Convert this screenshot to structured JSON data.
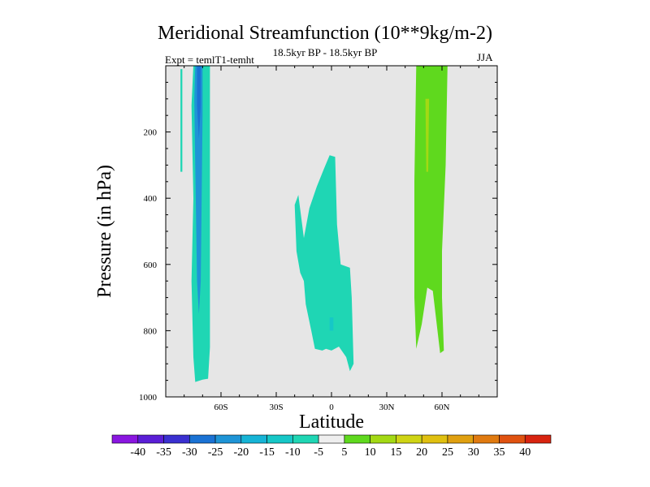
{
  "chart_data": {
    "type": "filled-contour",
    "title": "Meridional Streamfunction (10**9kg/m-2)",
    "subtitle": "18.5kyr BP - 18.5kyr BP",
    "experiment": "Expt = temlT1-temht",
    "season": "JJA",
    "xlabel": "Latitude",
    "ylabel": "Pressure (in hPa)",
    "xlim": [
      -90,
      90
    ],
    "ylim": [
      1000,
      0
    ],
    "xticks": [
      {
        "value": -60,
        "label": "60S"
      },
      {
        "value": -30,
        "label": "30S"
      },
      {
        "value": 0,
        "label": "0"
      },
      {
        "value": 30,
        "label": "30N"
      },
      {
        "value": 60,
        "label": "60N"
      }
    ],
    "yticks": [
      {
        "value": 200,
        "label": "200"
      },
      {
        "value": 400,
        "label": "400"
      },
      {
        "value": 600,
        "label": "600"
      },
      {
        "value": 800,
        "label": "800"
      },
      {
        "value": 1000,
        "label": "1000"
      }
    ],
    "background_color": "#e6e6e6",
    "contour_regions": [
      {
        "name": "sh-high-lat-cell",
        "level": -10,
        "color": "#1fd6b4",
        "polygon": [
          [
            -74,
            0
          ],
          [
            -66,
            0
          ],
          [
            -66,
            850
          ],
          [
            -67,
            945
          ],
          [
            -70,
            948
          ],
          [
            -74,
            955
          ],
          [
            -75,
            880
          ],
          [
            -76,
            650
          ],
          [
            -75,
            400
          ],
          [
            -76,
            120
          ],
          [
            -75,
            0
          ]
        ]
      },
      {
        "name": "sh-strip",
        "level": -10,
        "color": "#1fd6b4",
        "polygon": [
          [
            -82,
            10
          ],
          [
            -81,
            10
          ],
          [
            -81,
            320
          ],
          [
            -82,
            320
          ]
        ]
      },
      {
        "name": "sh-core",
        "level": -20,
        "color": "#1e94d6",
        "polygon": [
          [
            -74,
            0
          ],
          [
            -70,
            0
          ],
          [
            -70,
            150
          ],
          [
            -71,
            650
          ],
          [
            -72,
            750
          ],
          [
            -73,
            650
          ],
          [
            -74,
            300
          ],
          [
            -74.5,
            100
          ]
        ]
      },
      {
        "name": "sh-core-inner",
        "level": -25,
        "color": "#1a72d4",
        "polygon": [
          [
            -73,
            0
          ],
          [
            -71,
            0
          ],
          [
            -71,
            120
          ],
          [
            -72,
            220
          ],
          [
            -73,
            120
          ]
        ]
      },
      {
        "name": "equatorial-cell",
        "level": -10,
        "color": "#1fd6b4",
        "polygon": [
          [
            -1,
            270
          ],
          [
            2,
            275
          ],
          [
            3,
            480
          ],
          [
            5,
            600
          ],
          [
            10,
            610
          ],
          [
            11,
            700
          ],
          [
            12,
            900
          ],
          [
            10,
            922
          ],
          [
            8,
            880
          ],
          [
            4,
            848
          ],
          [
            0,
            860
          ],
          [
            -3,
            855
          ],
          [
            -5,
            860
          ],
          [
            -9,
            855
          ],
          [
            -11,
            800
          ],
          [
            -14,
            720
          ],
          [
            -15,
            650
          ],
          [
            -17,
            625
          ],
          [
            -19,
            560
          ],
          [
            -20,
            420
          ],
          [
            -18,
            390
          ],
          [
            -15,
            520
          ],
          [
            -12,
            430
          ],
          [
            -8,
            365
          ],
          [
            -4,
            310
          ]
        ]
      },
      {
        "name": "equatorial-core",
        "level": -15,
        "color": "#16c7c7",
        "polygon": [
          [
            -1,
            760
          ],
          [
            1,
            760
          ],
          [
            1,
            800
          ],
          [
            -1,
            800
          ]
        ]
      },
      {
        "name": "nh-cell",
        "level": 10,
        "color": "#5fd91e",
        "polygon": [
          [
            46,
            0
          ],
          [
            63,
            0
          ],
          [
            62,
            300
          ],
          [
            60,
            560
          ],
          [
            60,
            700
          ],
          [
            61,
            860
          ],
          [
            59,
            868
          ],
          [
            55,
            680
          ],
          [
            52,
            670
          ],
          [
            49,
            780
          ],
          [
            46,
            855
          ],
          [
            45,
            700
          ],
          [
            45,
            350
          ]
        ]
      },
      {
        "name": "nh-core",
        "level": 15,
        "color": "#a3d914",
        "polygon": [
          [
            51,
            100
          ],
          [
            53,
            100
          ],
          [
            52.5,
            320
          ],
          [
            51.5,
            320
          ]
        ]
      }
    ],
    "colorbar": {
      "levels": [
        -40,
        -35,
        -30,
        -25,
        -20,
        -15,
        -10,
        -5,
        5,
        10,
        15,
        20,
        25,
        30,
        35,
        40
      ],
      "labels": [
        "-40",
        "-35",
        "-30",
        "-25",
        "-20",
        "-15",
        "-10",
        "-5",
        "5",
        "10",
        "15",
        "20",
        "25",
        "30",
        "35",
        "40"
      ],
      "colors": [
        "#8a16e0",
        "#5a1ed6",
        "#3a30d0",
        "#1a72d4",
        "#1e94d6",
        "#16b4d6",
        "#16c7c7",
        "#1fd6b4",
        "#eeeeee",
        "#5fd91e",
        "#a3d914",
        "#cfd414",
        "#e0c010",
        "#e0a010",
        "#e07a10",
        "#e05210",
        "#d82410"
      ]
    }
  }
}
